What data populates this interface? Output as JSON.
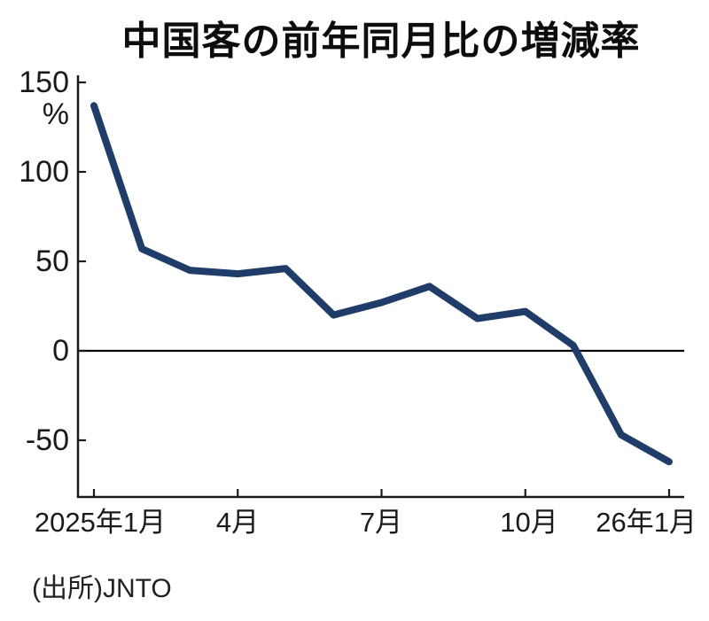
{
  "chart_data": {
    "type": "line",
    "title": "中国客の前年同月比の増減率",
    "ylabel": "%",
    "xlabel": "",
    "source": "(出所)JNTO",
    "x": [
      "2025年1月",
      "2025年2月",
      "2025年3月",
      "2025年4月",
      "2025年5月",
      "2025年6月",
      "2025年7月",
      "2025年8月",
      "2025年9月",
      "2025年10月",
      "2025年11月",
      "2025年12月",
      "2026年1月"
    ],
    "series": [
      {
        "name": "中国客の前年同月比の増減率",
        "values": [
          137,
          57,
          45,
          43,
          46,
          20,
          27,
          36,
          18,
          22,
          3,
          -47,
          -62
        ]
      }
    ],
    "x_tick_labels": [
      "2025年1月",
      "4月",
      "7月",
      "10月",
      "26年1月"
    ],
    "x_tick_indices": [
      0,
      3,
      6,
      9,
      12
    ],
    "y_ticks": [
      150,
      100,
      50,
      0,
      -50
    ],
    "y_tick_labels": [
      "150",
      "100",
      "50",
      "0",
      "-50"
    ],
    "ylim": [
      -75,
      155
    ],
    "grid": false,
    "legend_position": "none",
    "zero_line": true,
    "colors": {
      "line": "#203d69",
      "axis": "#1a1a1a",
      "zero_line": "#000000",
      "background": "#ffffff",
      "text": "#111111"
    }
  }
}
